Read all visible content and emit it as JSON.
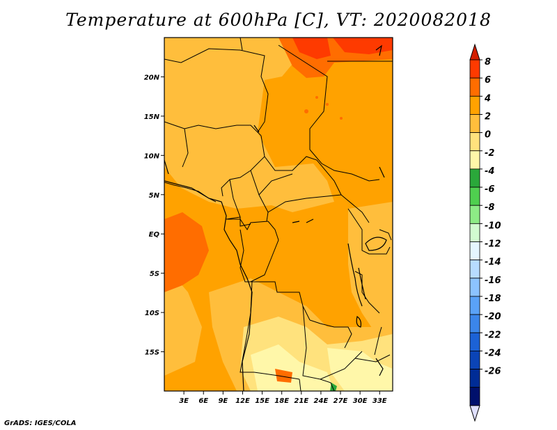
{
  "title": "Temperature at 600hPa [C], VT: 2020082018",
  "credit": "GrADS: IGES/COLA",
  "map": {
    "lon_ticks": [
      "3E",
      "6E",
      "9E",
      "12E",
      "15E",
      "18E",
      "21E",
      "24E",
      "27E",
      "30E",
      "33E"
    ],
    "lat_ticks": [
      "20N",
      "15N",
      "10N",
      "5N",
      "EQ",
      "5S",
      "10S",
      "15S"
    ],
    "lon_range": [
      0,
      35
    ],
    "lat_range": [
      -20,
      25
    ],
    "colors": {
      "base": "#ffa200",
      "warm1": "#ffbe3c",
      "warm2": "#ff6d00",
      "warm3": "#fe3a00",
      "cool1": "#ffe27d",
      "cool2": "#fff7a9",
      "green": "#2aa83a",
      "border": "#000000"
    }
  },
  "colorbar": {
    "labels": [
      "8",
      "6",
      "4",
      "2",
      "0",
      "-2",
      "-4",
      "-6",
      "-8",
      "-10",
      "-12",
      "-14",
      "-16",
      "-18",
      "-20",
      "-22",
      "-24",
      "-26"
    ],
    "colors": [
      "#fe3a00",
      "#ff6d00",
      "#ffa200",
      "#ffbe3c",
      "#ffe27d",
      "#fff7a9",
      "#2aa83a",
      "#4fcf4f",
      "#8deb86",
      "#d2fbd0",
      "#e5f6ff",
      "#b7dcff",
      "#8cc3ff",
      "#5aa2f7",
      "#3b86ea",
      "#1c62d6",
      "#0b44b6",
      "#002c96",
      "#00106c"
    ],
    "top_arrow_color": "#d31f00",
    "bottom_arrow_color": "#e0e0ff"
  }
}
